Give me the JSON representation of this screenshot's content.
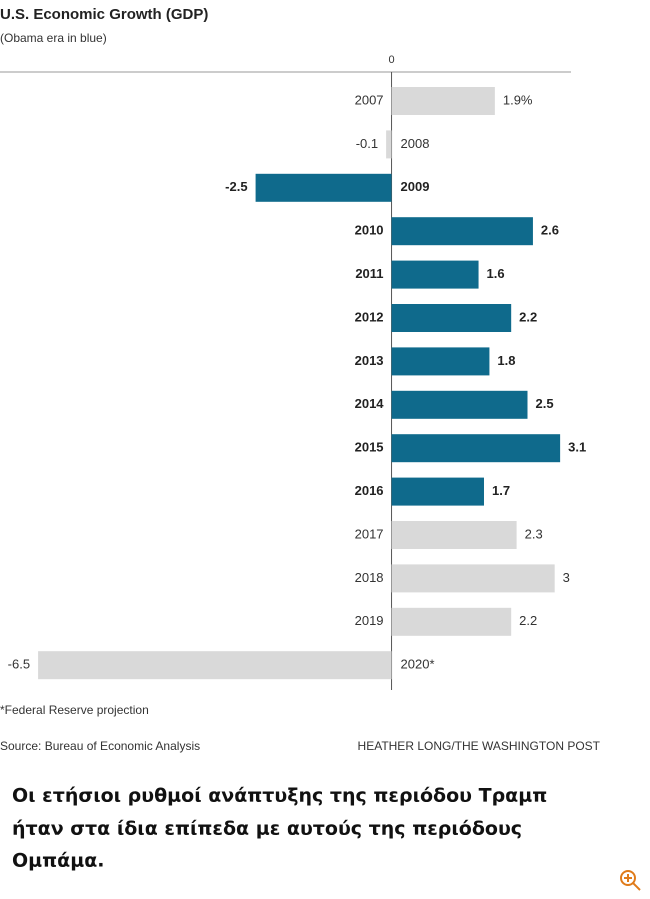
{
  "chart_data": {
    "type": "bar",
    "orientation": "horizontal",
    "title": "U.S. Economic Growth (GDP)",
    "subtitle": "(Obama era in blue)",
    "categories": [
      "2007",
      "2008",
      "2009",
      "2010",
      "2011",
      "2012",
      "2013",
      "2014",
      "2015",
      "2016",
      "2017",
      "2018",
      "2019",
      "2020*"
    ],
    "values": [
      1.9,
      -0.1,
      -2.5,
      2.6,
      1.6,
      2.2,
      1.8,
      2.5,
      3.1,
      1.7,
      2.3,
      3,
      2.2,
      -6.5
    ],
    "value_labels": [
      "1.9%",
      "-0.1",
      "-2.5",
      "2.6",
      "1.6",
      "2.2",
      "1.8",
      "2.5",
      "3.1",
      "1.7",
      "2.3",
      "3",
      "2.2",
      "-6.5"
    ],
    "colors": [
      "#d9d9d9",
      "#d9d9d9",
      "#0f6a8c",
      "#0f6a8c",
      "#0f6a8c",
      "#0f6a8c",
      "#0f6a8c",
      "#0f6a8c",
      "#0f6a8c",
      "#0f6a8c",
      "#d9d9d9",
      "#d9d9d9",
      "#d9d9d9",
      "#d9d9d9"
    ],
    "xlim": [
      -7.2,
      3.3
    ],
    "xticks": [
      0
    ],
    "footnote": "*Federal Reserve projection",
    "source": "Source: Bureau of Economic Analysis",
    "credit": "HEATHER LONG/THE WASHINGTON POST"
  },
  "caption": [
    "Οι ετήσιοι ρυθμοί ανάπτυξης της περιόδου Τραμπ",
    "ήταν στα ίδια επίπεδα με αυτούς της περιόδους",
    "Ομπάμα."
  ]
}
